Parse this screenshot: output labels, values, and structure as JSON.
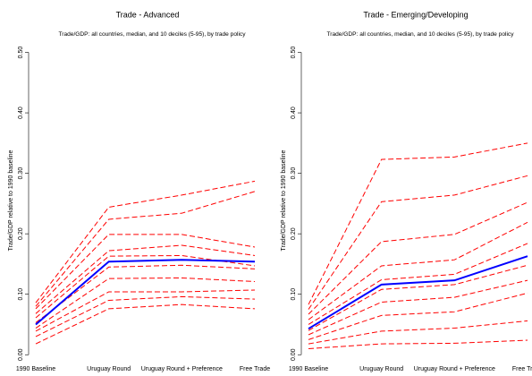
{
  "chart_data": [
    {
      "type": "line",
      "title": "Trade - Advanced",
      "subtitle": "Trade/GDP: all countries, median, and 10 deciles (5-95), by trade policy",
      "y_label": "Trade/GDP relative to 1990 baseline",
      "categories": [
        "1990 Baseline",
        "Uruguay Round",
        "Uruguay Round + Preference",
        "Free Trade"
      ],
      "ylim": [
        -0.01,
        0.52
      ],
      "yticks": [
        {
          "value": 0,
          "label": "0.00"
        },
        {
          "value": 0.1,
          "label": "0.10"
        },
        {
          "value": 0.2,
          "label": "0.20"
        },
        {
          "value": 0.3,
          "label": "0.30"
        },
        {
          "value": 0.4,
          "label": "0.40"
        },
        {
          "value": 0.5,
          "label": "0.50"
        }
      ],
      "series": [
        {
          "color": "#ff0000",
          "values": [
            0.086,
            0.244,
            0.264,
            0.287
          ]
        },
        {
          "color": "#ff0000",
          "values": [
            0.08,
            0.224,
            0.234,
            0.27
          ]
        },
        {
          "color": "#ff0000",
          "values": [
            0.076,
            0.199,
            0.199,
            0.178
          ]
        },
        {
          "color": "#ff0000",
          "values": [
            0.068,
            0.172,
            0.181,
            0.164
          ]
        },
        {
          "color": "#ff0000",
          "values": [
            0.061,
            0.163,
            0.164,
            0.147
          ]
        },
        {
          "color": "#ff0000",
          "values": [
            0.053,
            0.145,
            0.148,
            0.142
          ]
        },
        {
          "color": "#ff0000",
          "values": [
            0.044,
            0.126,
            0.127,
            0.121
          ]
        },
        {
          "color": "#ff0000",
          "values": [
            0.039,
            0.104,
            0.104,
            0.107
          ]
        },
        {
          "color": "#ff0000",
          "values": [
            0.03,
            0.09,
            0.096,
            0.092
          ]
        },
        {
          "color": "#ff0000",
          "values": [
            0.018,
            0.076,
            0.083,
            0.076
          ]
        },
        {
          "color": "#0000ff",
          "values": [
            0.05,
            0.154,
            0.157,
            0.154
          ]
        }
      ]
    },
    {
      "type": "line",
      "title": "Trade - Emerging/Developing",
      "subtitle": "Trade/GDP: all countries, median, and 10 deciles (5-95), by trade policy",
      "y_label": "Trade/GDP relative to 1990 baseline",
      "categories": [
        "1990 Baseline",
        "Uruguay Round",
        "Uruguay Round + Preference",
        "Free Trade"
      ],
      "ylim": [
        -0.01,
        0.52
      ],
      "yticks": [
        {
          "value": 0,
          "label": "0.00"
        },
        {
          "value": 0.1,
          "label": "0.10"
        },
        {
          "value": 0.2,
          "label": "0.20"
        },
        {
          "value": 0.3,
          "label": "0.30"
        },
        {
          "value": 0.4,
          "label": "0.40"
        },
        {
          "value": 0.5,
          "label": "0.50"
        }
      ],
      "series": [
        {
          "color": "#ff0000",
          "values": [
            0.083,
            0.323,
            0.327,
            0.35
          ]
        },
        {
          "color": "#ff0000",
          "values": [
            0.075,
            0.253,
            0.264,
            0.296
          ]
        },
        {
          "color": "#ff0000",
          "values": [
            0.067,
            0.187,
            0.199,
            0.252
          ]
        },
        {
          "color": "#ff0000",
          "values": [
            0.058,
            0.147,
            0.157,
            0.219
          ]
        },
        {
          "color": "#ff0000",
          "values": [
            0.05,
            0.124,
            0.133,
            0.184
          ]
        },
        {
          "color": "#ff0000",
          "values": [
            0.04,
            0.108,
            0.116,
            0.148
          ]
        },
        {
          "color": "#ff0000",
          "values": [
            0.033,
            0.087,
            0.095,
            0.123
          ]
        },
        {
          "color": "#ff0000",
          "values": [
            0.025,
            0.065,
            0.071,
            0.102
          ]
        },
        {
          "color": "#ff0000",
          "values": [
            0.018,
            0.039,
            0.044,
            0.056
          ]
        },
        {
          "color": "#ff0000",
          "values": [
            0.01,
            0.018,
            0.019,
            0.024
          ]
        },
        {
          "color": "#0000ff",
          "values": [
            0.043,
            0.116,
            0.123,
            0.163
          ]
        }
      ]
    }
  ]
}
